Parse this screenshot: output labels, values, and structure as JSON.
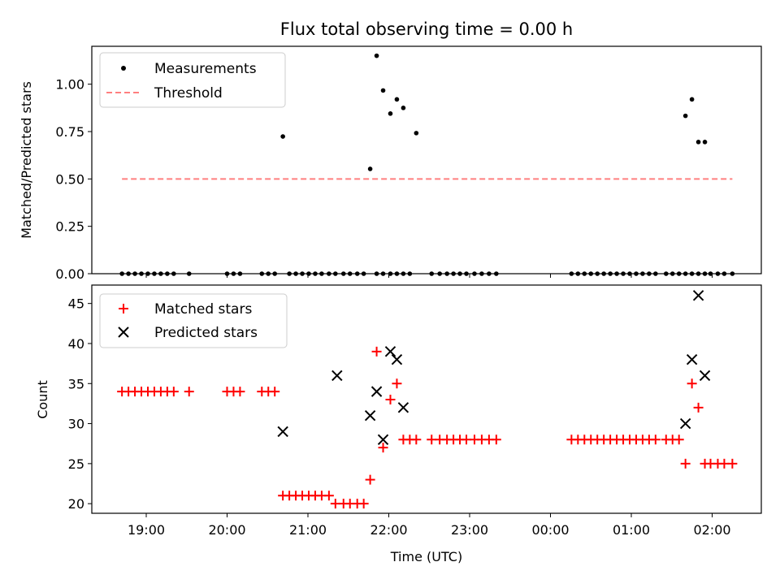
{
  "chart_data": [
    {
      "type": "scatter",
      "title": "Flux total observing time = 0.00 h",
      "xlabel": "",
      "ylabel": "Matched/Predicted stars",
      "ylim": [
        0,
        1.2
      ],
      "xlim": [
        -0.3,
        7.6
      ],
      "yticks": [
        "0.00",
        "0.25",
        "0.50",
        "0.75",
        "1.00"
      ],
      "ytick_values": [
        0,
        0.25,
        0.5,
        0.75,
        1.0
      ],
      "legend_position": "upper-left",
      "threshold": {
        "name": "Threshold",
        "value": 0.5,
        "x_range": [
          -0.3,
          7.25
        ],
        "color": "#ff7f7f",
        "style": "dashed"
      },
      "series": [
        {
          "name": "Measurements",
          "color": "#000000",
          "marker": "dot",
          "x": [
            -0.3,
            -0.22,
            -0.14,
            -0.06,
            0.02,
            0.1,
            0.18,
            0.26,
            0.34,
            0.53,
            1.0,
            1.08,
            1.16,
            1.43,
            1.51,
            1.59,
            1.69,
            1.77,
            1.85,
            1.93,
            2.01,
            2.09,
            2.17,
            2.26,
            2.34,
            2.44,
            2.52,
            2.61,
            2.69,
            2.77,
            2.85,
            2.93,
            3.02,
            3.1,
            3.18,
            3.26,
            3.34,
            3.53,
            3.63,
            3.72,
            3.8,
            3.88,
            3.96,
            4.06,
            4.15,
            4.24,
            4.33,
            5.26,
            5.34,
            5.42,
            5.5,
            5.58,
            5.66,
            5.74,
            5.82,
            5.9,
            5.98,
            6.06,
            6.14,
            6.22,
            6.3,
            6.43,
            6.51,
            6.59,
            6.67,
            6.75,
            6.83,
            6.91,
            6.98,
            7.07,
            7.15,
            7.25
          ],
          "y": [
            0,
            0,
            0,
            0,
            0,
            0,
            0,
            0,
            0,
            0,
            0,
            0,
            0,
            0,
            0,
            0,
            0.724,
            0,
            0,
            0,
            0,
            0,
            0,
            0,
            0,
            0,
            0,
            0,
            0,
            0.553,
            0,
            0,
            0,
            0,
            0,
            0,
            0.742,
            0,
            0,
            0,
            0,
            0,
            0,
            0,
            0,
            0,
            0,
            0,
            0,
            0,
            0,
            0,
            0,
            0,
            0,
            0,
            0,
            0,
            0,
            0,
            0,
            0,
            0,
            0,
            0,
            0,
            0,
            0,
            0,
            0,
            0,
            0
          ]
        },
        {
          "name": "",
          "color": "#000000",
          "marker": "dot",
          "x": [
            2.85,
            2.93,
            3.02,
            3.1,
            3.18,
            6.67,
            6.75,
            6.83,
            6.91
          ],
          "y": [
            1.15,
            0.967,
            0.845,
            0.92,
            0.875,
            0.833,
            0.92,
            0.695,
            0.695
          ]
        }
      ]
    },
    {
      "type": "scatter",
      "title": "",
      "xlabel": "Time (UTC)",
      "ylabel": "Count",
      "ylim": [
        18.8,
        47.3
      ],
      "xlim": [
        -0.3,
        7.6
      ],
      "yticks": [
        "20",
        "25",
        "30",
        "35",
        "40",
        "45"
      ],
      "ytick_values": [
        20,
        25,
        30,
        35,
        40,
        45
      ],
      "xticks": [
        "19:00",
        "20:00",
        "21:00",
        "22:00",
        "23:00",
        "00:00",
        "01:00",
        "02:00"
      ],
      "xtick_values": [
        0,
        1,
        2,
        3,
        4,
        5,
        6,
        7
      ],
      "legend_position": "upper-left",
      "series": [
        {
          "name": "Matched stars",
          "color": "#ff0000",
          "marker": "plus",
          "x": [
            -0.3,
            -0.22,
            -0.14,
            -0.06,
            0.02,
            0.1,
            0.18,
            0.26,
            0.34,
            0.53,
            1.0,
            1.08,
            1.16,
            1.43,
            1.51,
            1.59,
            1.69,
            1.77,
            1.85,
            1.93,
            2.01,
            2.09,
            2.17,
            2.26,
            2.34,
            2.44,
            2.52,
            2.61,
            2.69,
            2.77,
            2.85,
            2.93,
            3.02,
            3.1,
            3.18,
            3.26,
            3.34,
            3.53,
            3.63,
            3.72,
            3.8,
            3.88,
            3.96,
            4.06,
            4.15,
            4.24,
            4.33,
            5.26,
            5.34,
            5.42,
            5.5,
            5.58,
            5.66,
            5.74,
            5.82,
            5.9,
            5.98,
            6.06,
            6.14,
            6.22,
            6.3,
            6.43,
            6.51,
            6.59,
            6.67,
            6.75,
            6.83,
            6.91,
            6.98,
            7.07,
            7.15,
            7.25
          ],
          "y": [
            34,
            34,
            34,
            34,
            34,
            34,
            34,
            34,
            34,
            34,
            34,
            34,
            34,
            34,
            34,
            34,
            21,
            21,
            21,
            21,
            21,
            21,
            21,
            21,
            20,
            20,
            20,
            20,
            20,
            23,
            39,
            27,
            33,
            35,
            28,
            28,
            28,
            28,
            28,
            28,
            28,
            28,
            28,
            28,
            28,
            28,
            28,
            28,
            28,
            28,
            28,
            28,
            28,
            28,
            28,
            28,
            28,
            28,
            28,
            28,
            28,
            28,
            28,
            28,
            25,
            35,
            32,
            25,
            25,
            25,
            25,
            25
          ]
        },
        {
          "name": "Predicted stars",
          "color": "#000000",
          "marker": "x",
          "x": [
            1.69,
            2.36,
            2.77,
            2.85,
            2.93,
            3.02,
            3.1,
            3.18,
            6.67,
            6.75,
            6.83,
            6.91
          ],
          "y": [
            29,
            36,
            31,
            34,
            28,
            39,
            38,
            32,
            30,
            38,
            46,
            36
          ]
        }
      ]
    }
  ]
}
